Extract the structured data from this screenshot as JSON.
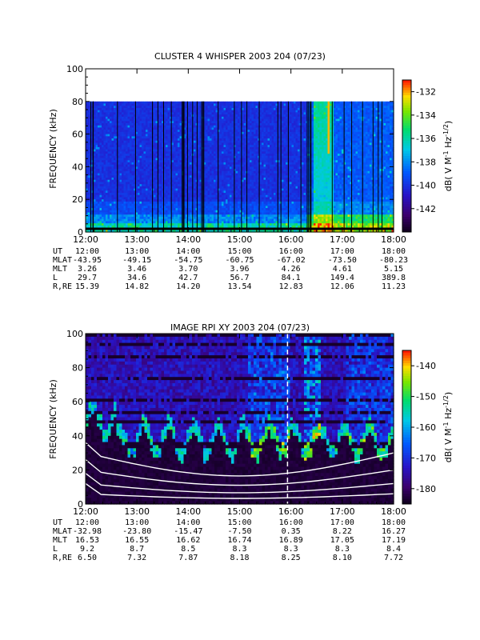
{
  "chart_data": [
    {
      "type": "heatmap",
      "title": "CLUSTER 4 WHISPER 2003 204 (07/23)",
      "ylabel": "FREQUENCY (kHz)",
      "ylim": [
        0,
        100
      ],
      "y_ticks": [
        "0",
        "20",
        "40",
        "60",
        "80",
        "100"
      ],
      "x_ticks": [
        "12:00",
        "13:00",
        "14:00",
        "15:00",
        "16:00",
        "17:00",
        "18:00"
      ],
      "data_top_khz": 80,
      "colorbar": {
        "label": "dB( V M",
        "range": [
          -144,
          -131
        ],
        "ticks": [
          "-132",
          "-134",
          "-136",
          "-138",
          "-140",
          "-142"
        ]
      },
      "ephemeris": [
        {
          "label": "UT",
          "values": [
            "12:00",
            "13:00",
            "14:00",
            "15:00",
            "16:00",
            "17:00",
            "18:00"
          ]
        },
        {
          "label": "MLAT",
          "values": [
            "-43.95",
            "-49.15",
            "-54.75",
            "-60.75",
            "-67.02",
            "-73.50",
            "-80.23"
          ]
        },
        {
          "label": "MLT",
          "values": [
            "3.26",
            "3.46",
            "3.70",
            "3.96",
            "4.26",
            "4.61",
            "5.15"
          ]
        },
        {
          "label": "L",
          "values": [
            "29.7",
            "34.6",
            "42.7",
            "56.7",
            "84.1",
            "149.4",
            "389.8"
          ]
        },
        {
          "label": "R,RE",
          "values": [
            "15.39",
            "14.82",
            "14.20",
            "13.54",
            "12.83",
            "12.06",
            "11.23"
          ]
        }
      ]
    },
    {
      "type": "heatmap",
      "title": "IMAGE RPI XY 2003 204 (07/23)",
      "ylabel": "FREQUENCY (kHz)",
      "ylim": [
        0,
        100
      ],
      "y_ticks": [
        "0",
        "20",
        "40",
        "60",
        "80",
        "100"
      ],
      "x_ticks": [
        "12:00",
        "13:00",
        "14:00",
        "15:00",
        "16:00",
        "17:00",
        "18:00"
      ],
      "dashed_line_time": "15:56",
      "colorbar": {
        "label": "dB( V M",
        "range": [
          -185,
          -135
        ],
        "ticks": [
          "-140",
          "-150",
          "-160",
          "-170",
          "-180"
        ]
      },
      "ephemeris": [
        {
          "label": "UT",
          "values": [
            "12:00",
            "13:00",
            "14:00",
            "15:00",
            "16:00",
            "17:00",
            "18:00"
          ]
        },
        {
          "label": "MLAT",
          "values": [
            "-32.98",
            "-23.80",
            "-15.47",
            "-7.50",
            "0.35",
            "8.22",
            "16.27"
          ]
        },
        {
          "label": "MLT",
          "values": [
            "16.53",
            "16.55",
            "16.62",
            "16.74",
            "16.89",
            "17.05",
            "17.19"
          ]
        },
        {
          "label": "L",
          "values": [
            "9.2",
            "8.7",
            "8.5",
            "8.3",
            "8.3",
            "8.3",
            "8.4"
          ]
        },
        {
          "label": "R,RE",
          "values": [
            "6.50",
            "7.32",
            "7.87",
            "8.18",
            "8.25",
            "8.10",
            "7.72"
          ]
        }
      ]
    }
  ],
  "colorbar_unit_parts": {
    "m": "M",
    "exp1": "-1",
    "hz": " Hz",
    "exp2": "-1/2",
    "close": ")"
  }
}
